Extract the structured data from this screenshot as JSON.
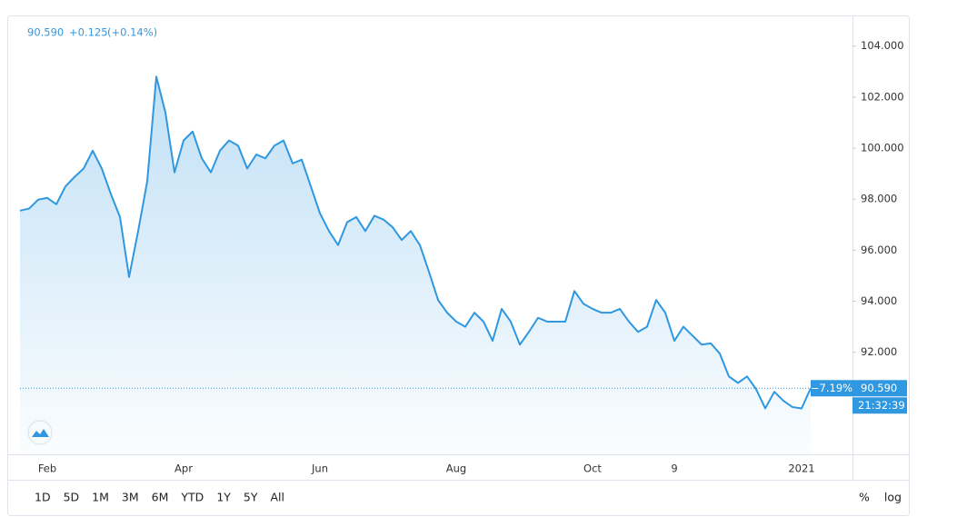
{
  "chart_data": {
    "type": "area",
    "price": "90.590",
    "change": "+0.125",
    "change_pct": "(+0.14%)",
    "period_change_label": "−7.19%",
    "last_label": "90.590",
    "time_label": "21:32:39",
    "color": "#2f98e0",
    "categories": [
      null,
      null,
      null,
      "Feb",
      null,
      null,
      null,
      null,
      null,
      null,
      null,
      null,
      null,
      null,
      null,
      null,
      null,
      null,
      "Apr",
      null,
      null,
      null,
      null,
      null,
      null,
      null,
      null,
      null,
      null,
      null,
      null,
      null,
      null,
      "Jun",
      null,
      null,
      null,
      null,
      null,
      null,
      null,
      null,
      null,
      null,
      null,
      null,
      null,
      null,
      "Aug",
      null,
      null,
      null,
      null,
      null,
      null,
      null,
      null,
      null,
      null,
      null,
      null,
      null,
      null,
      "Oct",
      null,
      null,
      null,
      null,
      null,
      null,
      null,
      null,
      "9",
      null,
      null,
      null,
      null,
      null,
      null,
      null,
      null,
      null,
      null,
      null,
      null,
      null,
      "2021",
      null
    ],
    "values": [
      97.55,
      97.63,
      97.98,
      98.05,
      97.8,
      98.5,
      98.87,
      99.2,
      99.9,
      99.2,
      98.2,
      97.3,
      94.95,
      96.75,
      98.7,
      102.8,
      101.4,
      99.05,
      100.3,
      100.65,
      99.6,
      99.05,
      99.9,
      100.3,
      100.1,
      99.2,
      99.75,
      99.6,
      100.1,
      100.3,
      99.4,
      99.55,
      98.5,
      97.45,
      96.75,
      96.2,
      97.1,
      97.3,
      96.75,
      97.35,
      97.2,
      96.9,
      96.4,
      96.75,
      96.2,
      95.15,
      94.05,
      93.55,
      93.2,
      93.0,
      93.55,
      93.2,
      92.45,
      93.7,
      93.2,
      92.3,
      92.8,
      93.35,
      93.2,
      93.2,
      93.2,
      94.4,
      93.9,
      93.7,
      93.55,
      93.55,
      93.7,
      93.2,
      92.8,
      93.0,
      94.05,
      93.55,
      92.45,
      93.0,
      92.65,
      92.3,
      92.35,
      91.95,
      91.05,
      90.8,
      91.05,
      90.55,
      89.8,
      90.45,
      90.1,
      89.85,
      89.8,
      90.59
    ],
    "ylim": [
      88.0,
      105.2
    ],
    "yticks": [
      {
        "value": 92,
        "label": "92.000"
      },
      {
        "value": 94,
        "label": "94.000"
      },
      {
        "value": 96,
        "label": "96.000"
      },
      {
        "value": 98,
        "label": "98.000"
      },
      {
        "value": 100,
        "label": "100.000"
      },
      {
        "value": 102,
        "label": "102.000"
      },
      {
        "value": 104,
        "label": "104.000"
      }
    ],
    "ranges": [
      "1D",
      "5D",
      "1M",
      "3M",
      "6M",
      "YTD",
      "1Y",
      "5Y",
      "All"
    ],
    "scale_options": [
      "%",
      "log"
    ]
  }
}
